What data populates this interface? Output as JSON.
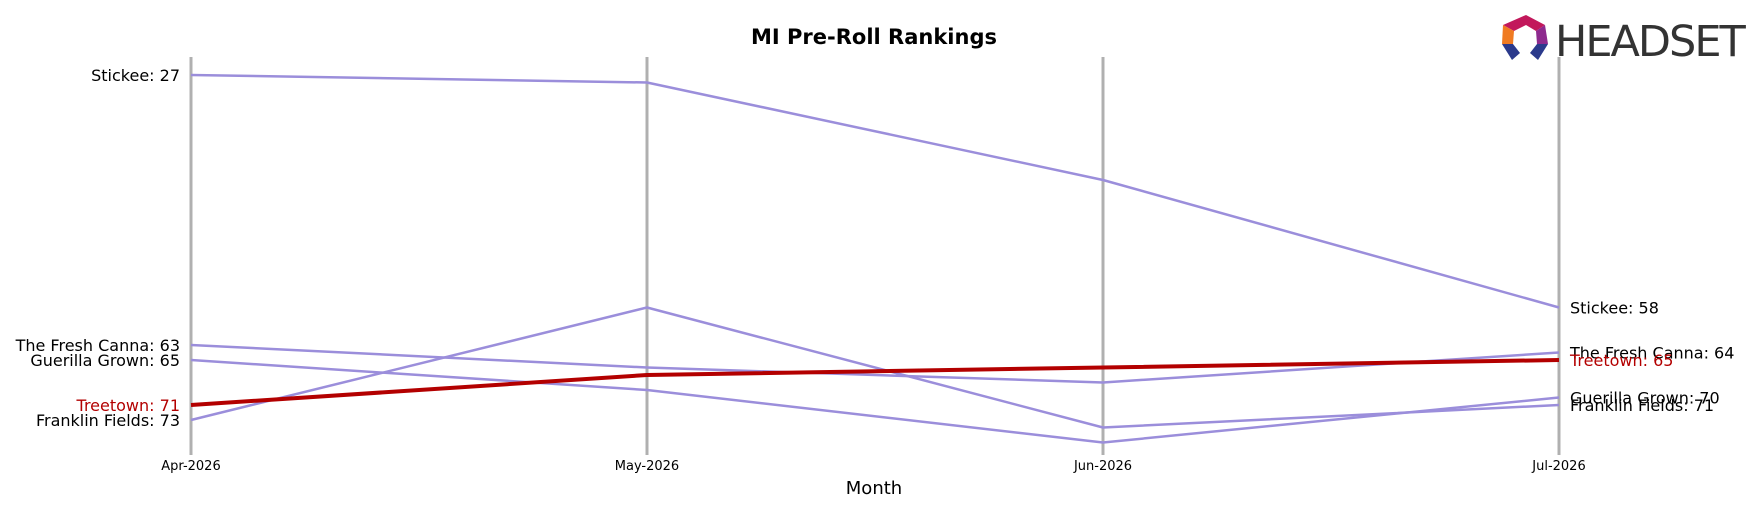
{
  "chart_data": {
    "type": "line",
    "title": "MI Pre-Roll Rankings",
    "xlabel": "Month",
    "ylabel": "",
    "categories": [
      "Apr-2026",
      "May-2026",
      "Jun-2026",
      "Jul-2026"
    ],
    "y_inverted": true,
    "series": [
      {
        "name": "Stickee",
        "values": [
          27,
          28,
          41,
          58
        ],
        "color": "#9b8edb",
        "highlight": false,
        "start_label": "Stickee: 27",
        "end_label": "Stickee: 58"
      },
      {
        "name": "The Fresh Canna",
        "values": [
          63,
          66,
          68,
          64
        ],
        "color": "#9b8edb",
        "highlight": false,
        "start_label": "The Fresh Canna: 63",
        "end_label": "The Fresh Canna: 64"
      },
      {
        "name": "Guerilla Grown",
        "values": [
          65,
          69,
          76,
          70
        ],
        "color": "#9b8edb",
        "highlight": false,
        "start_label": "Guerilla Grown: 65",
        "end_label": "Guerilla Grown: 70"
      },
      {
        "name": "Franklin Fields",
        "values": [
          73,
          58,
          74,
          71
        ],
        "color": "#9b8edb",
        "highlight": false,
        "start_label": "Franklin Fields: 73",
        "end_label": "Franklin Fields: 71"
      },
      {
        "name": "Treetown",
        "values": [
          71,
          67,
          66,
          65
        ],
        "color": "#b30000",
        "highlight": true,
        "start_label": "Treetown: 71",
        "end_label": "Treetown: 65"
      }
    ],
    "grid": "vertical",
    "legend": "none"
  },
  "brand": {
    "logo_text": "HEADSET",
    "colors": {
      "vline": "#b0b0b0",
      "series": "#9b8edb",
      "highlight": "#b30000"
    }
  }
}
